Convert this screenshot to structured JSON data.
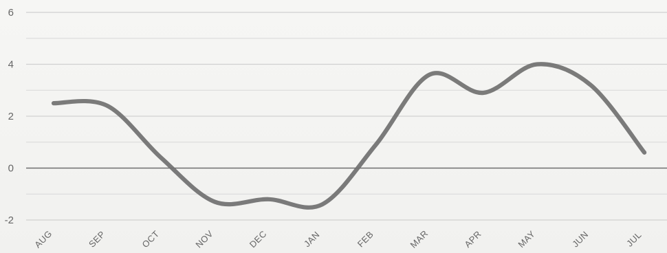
{
  "chart_data": {
    "type": "line",
    "categories": [
      "AUG",
      "SEP",
      "OCT",
      "NOV",
      "DEC",
      "JAN",
      "FEB",
      "MAR",
      "APR",
      "MAY",
      "JUN",
      "JUL"
    ],
    "series": [
      {
        "values": [
          2.5,
          2.4,
          0.4,
          -1.3,
          -1.2,
          -1.4,
          0.9,
          3.6,
          2.9,
          4.0,
          3.2,
          0.6
        ]
      }
    ],
    "ylim": [
      -2,
      6
    ],
    "yticks": [
      -2,
      0,
      2,
      4,
      6
    ],
    "grid": true,
    "colors": {
      "line": "#707070",
      "zero_line": "#666666",
      "grid": "#cfcfcf",
      "label": "#666666"
    }
  }
}
